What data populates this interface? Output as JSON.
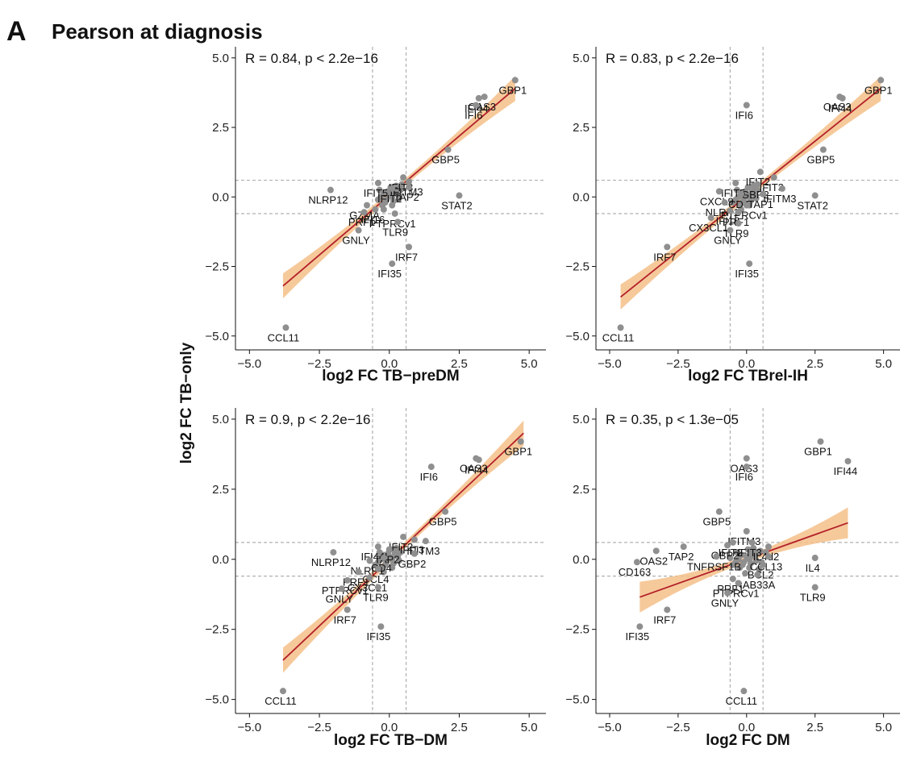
{
  "figure": {
    "panel_letter": "A",
    "title": "Pearson at diagnosis",
    "shared_ylabel": "log2 FC TB−only"
  },
  "colors": {
    "point": "#8f8f8f",
    "fit_line": "#b3202a",
    "ci_band": "#f5c088",
    "reference_line": "#b0b0b0"
  },
  "chart_data": [
    {
      "type": "scatter",
      "annotation": "R = 0.84, p < 2.2e−16",
      "xlabel": "log2 FC TB−preDM",
      "xlim": [
        -5.5,
        5.6
      ],
      "ylim": [
        -5.5,
        5.4
      ],
      "xticks": [
        "−5.0",
        "−2.5",
        "0.0",
        "2.5",
        "5.0"
      ],
      "xtick_values": [
        -5,
        -2.5,
        0,
        2.5,
        5
      ],
      "yticks": [
        "−5.0",
        "−2.5",
        "0.0",
        "2.5",
        "5.0"
      ],
      "ytick_values": [
        -5,
        -2.5,
        0,
        2.5,
        5
      ],
      "reference_lines": {
        "x": [
          -0.6,
          0.6
        ],
        "y": [
          -0.6,
          0.6
        ]
      },
      "fit": {
        "x_range": [
          -3.8,
          4.5
        ],
        "y_range": [
          -3.2,
          3.9
        ],
        "ci_halfwidth_ends": 0.45,
        "ci_halfwidth_mid": 0.12
      },
      "labeled_points": [
        {
          "label": "GBP1",
          "x": 4.5,
          "y": 4.2
        },
        {
          "label": "OAS3",
          "x": 3.4,
          "y": 3.6
        },
        {
          "label": "IFI44",
          "x": 3.2,
          "y": 3.55
        },
        {
          "label": "IFI6",
          "x": 3.1,
          "y": 3.3
        },
        {
          "label": "GBP5",
          "x": 2.1,
          "y": 1.7
        },
        {
          "label": "IFIT3",
          "x": 0.5,
          "y": 0.7
        },
        {
          "label": "IFITM3",
          "x": 0.7,
          "y": 0.55
        },
        {
          "label": "IFIT5",
          "x": -0.4,
          "y": 0.5
        },
        {
          "label": "IFIT2",
          "x": 0.1,
          "y": 0.3
        },
        {
          "label": "NLRP12",
          "x": -2.1,
          "y": 0.25
        },
        {
          "label": "TAP2",
          "x": 0.7,
          "y": 0.35
        },
        {
          "label": "STAT2",
          "x": 2.5,
          "y": 0.05
        },
        {
          "label": "GZMA",
          "x": -0.8,
          "y": -0.3
        },
        {
          "label": "IFI16",
          "x": -0.5,
          "y": -0.45
        },
        {
          "label": "PRF1",
          "x": -0.9,
          "y": -0.55
        },
        {
          "label": "PTPRCv1",
          "x": 0.2,
          "y": -0.6
        },
        {
          "label": "TLR9",
          "x": 0.3,
          "y": -0.9
        },
        {
          "label": "GNLY",
          "x": -1.1,
          "y": -1.2
        },
        {
          "label": "IRF7",
          "x": 0.7,
          "y": -1.8
        },
        {
          "label": "IFI35",
          "x": 0.1,
          "y": -2.4
        },
        {
          "label": "CCL11",
          "x": -3.7,
          "y": -4.7
        }
      ],
      "unlabeled_points": [
        {
          "x": 0.0,
          "y": 0.1
        },
        {
          "x": 0.1,
          "y": 0.0
        },
        {
          "x": -0.2,
          "y": 0.15
        },
        {
          "x": 0.2,
          "y": 0.2
        },
        {
          "x": -0.1,
          "y": -0.1
        },
        {
          "x": 0.3,
          "y": 0.1
        },
        {
          "x": -0.3,
          "y": 0.0
        },
        {
          "x": 0.15,
          "y": -0.15
        },
        {
          "x": -0.15,
          "y": -0.2
        },
        {
          "x": 0.4,
          "y": 0.25
        },
        {
          "x": -0.4,
          "y": -0.1
        },
        {
          "x": 0.25,
          "y": 0.4
        },
        {
          "x": 0.05,
          "y": 0.35
        },
        {
          "x": -0.25,
          "y": -0.3
        },
        {
          "x": 0.35,
          "y": -0.05
        },
        {
          "x": -0.05,
          "y": 0.2
        },
        {
          "x": 0.45,
          "y": 0.45
        },
        {
          "x": -0.35,
          "y": 0.25
        },
        {
          "x": 0.1,
          "y": -0.3
        },
        {
          "x": -0.2,
          "y": -0.45
        }
      ]
    },
    {
      "type": "scatter",
      "annotation": "R = 0.83, p < 2.2e−16",
      "xlabel": "log2 FC TBrel-IH",
      "xlim": [
        -5.5,
        5.6
      ],
      "ylim": [
        -5.5,
        5.4
      ],
      "xticks": [
        "−5.0",
        "−2.5",
        "0.0",
        "2.5",
        "5.0"
      ],
      "xtick_values": [
        -5,
        -2.5,
        0,
        2.5,
        5
      ],
      "yticks": [
        "−5.0",
        "−2.5",
        "0.0",
        "2.5",
        "5.0"
      ],
      "ytick_values": [
        -5,
        -2.5,
        0,
        2.5,
        5
      ],
      "reference_lines": {
        "x": [
          -0.6,
          0.6
        ],
        "y": [
          -0.6,
          0.6
        ]
      },
      "fit": {
        "x_range": [
          -4.6,
          4.9
        ],
        "y_range": [
          -3.6,
          3.9
        ],
        "ci_halfwidth_ends": 0.45,
        "ci_halfwidth_mid": 0.12
      },
      "labeled_points": [
        {
          "label": "GBP1",
          "x": 4.9,
          "y": 4.2
        },
        {
          "label": "OAS3",
          "x": 3.4,
          "y": 3.6
        },
        {
          "label": "IFI44",
          "x": 3.5,
          "y": 3.55
        },
        {
          "label": "IFI6",
          "x": 0.0,
          "y": 3.3
        },
        {
          "label": "GBP5",
          "x": 2.8,
          "y": 1.7
        },
        {
          "label": "IFIT2",
          "x": 0.5,
          "y": 0.9
        },
        {
          "label": "IFIT3",
          "x": 1.0,
          "y": 0.7
        },
        {
          "label": "GBP2",
          "x": 0.4,
          "y": 0.45
        },
        {
          "label": "IFITM3",
          "x": 1.3,
          "y": 0.3
        },
        {
          "label": "IFIT5",
          "x": -0.4,
          "y": 0.5
        },
        {
          "label": "CXCL9",
          "x": -1.0,
          "y": 0.2
        },
        {
          "label": "CD4",
          "x": -0.2,
          "y": 0.1
        },
        {
          "label": "TAP1",
          "x": 0.6,
          "y": 0.1
        },
        {
          "label": "NLRP1",
          "x": -0.8,
          "y": -0.2
        },
        {
          "label": "STAT2",
          "x": 2.5,
          "y": 0.05
        },
        {
          "label": "PTPRCv1",
          "x": 0.0,
          "y": -0.3
        },
        {
          "label": "IFI16",
          "x": -0.6,
          "y": -0.5
        },
        {
          "label": "PRF1",
          "x": -0.3,
          "y": -0.55
        },
        {
          "label": "CX3CL1",
          "x": -1.3,
          "y": -0.75
        },
        {
          "label": "TLR9",
          "x": -0.3,
          "y": -0.95
        },
        {
          "label": "GNLY",
          "x": -0.6,
          "y": -1.2
        },
        {
          "label": "IRF7",
          "x": -2.9,
          "y": -1.8
        },
        {
          "label": "IFI35",
          "x": 0.1,
          "y": -2.4
        },
        {
          "label": "CCL11",
          "x": -4.6,
          "y": -4.7
        }
      ],
      "unlabeled_points": [
        {
          "x": 0.0,
          "y": 0.1
        },
        {
          "x": 0.1,
          "y": 0.0
        },
        {
          "x": -0.2,
          "y": 0.15
        },
        {
          "x": 0.2,
          "y": 0.2
        },
        {
          "x": -0.1,
          "y": -0.1
        },
        {
          "x": 0.3,
          "y": 0.1
        },
        {
          "x": -0.3,
          "y": 0.0
        },
        {
          "x": 0.15,
          "y": -0.15
        },
        {
          "x": -0.15,
          "y": -0.2
        },
        {
          "x": 0.4,
          "y": 0.25
        },
        {
          "x": -0.4,
          "y": -0.1
        },
        {
          "x": 0.25,
          "y": 0.4
        },
        {
          "x": 0.05,
          "y": 0.35
        },
        {
          "x": -0.25,
          "y": -0.3
        },
        {
          "x": 0.35,
          "y": -0.05
        },
        {
          "x": -0.05,
          "y": 0.2
        },
        {
          "x": -0.5,
          "y": -0.2
        },
        {
          "x": -0.35,
          "y": 0.25
        },
        {
          "x": 0.1,
          "y": -0.3
        },
        {
          "x": -0.2,
          "y": -0.45
        }
      ]
    },
    {
      "type": "scatter",
      "annotation": "R = 0.9, p < 2.2e−16",
      "xlabel": "log2 FC TB−DM",
      "xlim": [
        -5.5,
        5.6
      ],
      "ylim": [
        -5.5,
        5.4
      ],
      "xticks": [
        "−5.0",
        "−2.5",
        "0.0",
        "2.5",
        "5.0"
      ],
      "xtick_values": [
        -5,
        -2.5,
        0,
        2.5,
        5
      ],
      "yticks": [
        "−5.0",
        "−2.5",
        "0.0",
        "2.5",
        "5.0"
      ],
      "ytick_values": [
        -5,
        -2.5,
        0,
        2.5,
        5
      ],
      "reference_lines": {
        "x": [
          -0.6,
          0.6
        ],
        "y": [
          -0.6,
          0.6
        ]
      },
      "fit": {
        "x_range": [
          -3.8,
          4.8
        ],
        "y_range": [
          -3.6,
          4.5
        ],
        "ci_halfwidth_ends": 0.45,
        "ci_halfwidth_mid": 0.12
      },
      "labeled_points": [
        {
          "label": "GBP1",
          "x": 4.7,
          "y": 4.2
        },
        {
          "label": "OAS3",
          "x": 3.1,
          "y": 3.6
        },
        {
          "label": "IFI44",
          "x": 3.2,
          "y": 3.55
        },
        {
          "label": "IFI6",
          "x": 1.5,
          "y": 3.3
        },
        {
          "label": "GBP5",
          "x": 2.0,
          "y": 1.7
        },
        {
          "label": "IFIT2",
          "x": 0.5,
          "y": 0.8
        },
        {
          "label": "IFIT3",
          "x": 0.9,
          "y": 0.7
        },
        {
          "label": "IFITM3",
          "x": 1.3,
          "y": 0.65
        },
        {
          "label": "IFI44L",
          "x": -0.4,
          "y": 0.45
        },
        {
          "label": "TAP2",
          "x": 0.0,
          "y": 0.35
        },
        {
          "label": "NLRP12",
          "x": -2.0,
          "y": 0.25
        },
        {
          "label": "GBP2",
          "x": 0.9,
          "y": 0.2
        },
        {
          "label": "CD4",
          "x": -0.2,
          "y": 0.05
        },
        {
          "label": "NLRP1",
          "x": -0.7,
          "y": -0.05
        },
        {
          "label": "CCL4",
          "x": -0.4,
          "y": -0.35
        },
        {
          "label": "PRF1",
          "x": -1.1,
          "y": -0.45
        },
        {
          "label": "PTPRCv1",
          "x": -1.5,
          "y": -0.75
        },
        {
          "label": "CX3CL1",
          "x": -0.7,
          "y": -0.65
        },
        {
          "label": "GNLY",
          "x": -1.7,
          "y": -1.05
        },
        {
          "label": "TLR9",
          "x": -0.4,
          "y": -1.0
        },
        {
          "label": "IRF7",
          "x": -1.5,
          "y": -1.8
        },
        {
          "label": "IFI35",
          "x": -0.3,
          "y": -2.4
        },
        {
          "label": "CCL11",
          "x": -3.8,
          "y": -4.7
        }
      ],
      "unlabeled_points": [
        {
          "x": 0.0,
          "y": 0.1
        },
        {
          "x": 0.1,
          "y": 0.0
        },
        {
          "x": -0.2,
          "y": 0.15
        },
        {
          "x": 0.2,
          "y": 0.2
        },
        {
          "x": -0.1,
          "y": -0.1
        },
        {
          "x": 0.3,
          "y": 0.1
        },
        {
          "x": -0.3,
          "y": 0.0
        },
        {
          "x": 0.15,
          "y": -0.15
        },
        {
          "x": -0.15,
          "y": -0.2
        },
        {
          "x": 0.4,
          "y": 0.25
        },
        {
          "x": -0.4,
          "y": -0.1
        },
        {
          "x": 0.25,
          "y": 0.4
        },
        {
          "x": 0.05,
          "y": 0.35
        },
        {
          "x": -0.25,
          "y": -0.3
        },
        {
          "x": 0.35,
          "y": -0.05
        },
        {
          "x": -0.05,
          "y": 0.2
        },
        {
          "x": -0.5,
          "y": -0.2
        },
        {
          "x": -0.35,
          "y": 0.25
        },
        {
          "x": 0.1,
          "y": -0.3
        },
        {
          "x": -0.2,
          "y": -0.45
        }
      ]
    },
    {
      "type": "scatter",
      "annotation": "R = 0.35, p < 1.3e−05",
      "xlabel": "log2 FC DM",
      "xlim": [
        -5.5,
        5.6
      ],
      "ylim": [
        -5.5,
        5.4
      ],
      "xticks": [
        "−5.0",
        "−2.5",
        "0.0",
        "2.5",
        "5.0"
      ],
      "xtick_values": [
        -5,
        -2.5,
        0,
        2.5,
        5
      ],
      "yticks": [
        "−5.0",
        "−2.5",
        "0.0",
        "2.5",
        "5.0"
      ],
      "ytick_values": [
        -5,
        -2.5,
        0,
        2.5,
        5
      ],
      "reference_lines": {
        "x": [
          -0.6,
          0.6
        ],
        "y": [
          -0.6,
          0.6
        ]
      },
      "fit": {
        "x_range": [
          -3.9,
          3.7
        ],
        "y_range": [
          -1.35,
          1.3
        ],
        "ci_halfwidth_ends": 0.55,
        "ci_halfwidth_mid": 0.12
      },
      "labeled_points": [
        {
          "label": "GBP1",
          "x": 2.7,
          "y": 4.2
        },
        {
          "label": "IFI44",
          "x": 3.7,
          "y": 3.5
        },
        {
          "label": "OAS3",
          "x": 0.0,
          "y": 3.6
        },
        {
          "label": "IFI6",
          "x": 0.0,
          "y": 3.3
        },
        {
          "label": "GBP5",
          "x": -1.0,
          "y": 1.7
        },
        {
          "label": "IFITM3",
          "x": 0.0,
          "y": 1.0
        },
        {
          "label": "IFIT2",
          "x": -0.5,
          "y": 0.6
        },
        {
          "label": "IFIT3",
          "x": 0.2,
          "y": 0.6
        },
        {
          "label": "IL4d2",
          "x": 0.8,
          "y": 0.45
        },
        {
          "label": "GBP2",
          "x": -0.7,
          "y": 0.5
        },
        {
          "label": "TAP2",
          "x": -2.3,
          "y": 0.45
        },
        {
          "label": "OAS2",
          "x": -3.3,
          "y": 0.3
        },
        {
          "label": "CD163",
          "x": -4.0,
          "y": -0.1
        },
        {
          "label": "TNFRSF1B",
          "x": -1.1,
          "y": 0.1
        },
        {
          "label": "CCL13",
          "x": 0.8,
          "y": 0.1
        },
        {
          "label": "IL4",
          "x": 2.5,
          "y": 0.05
        },
        {
          "label": "BCL2",
          "x": 0.6,
          "y": -0.2
        },
        {
          "label": "RAB33A",
          "x": 0.4,
          "y": -0.55
        },
        {
          "label": "PRF1",
          "x": -0.5,
          "y": -0.7
        },
        {
          "label": "PTPRCv1",
          "x": -0.3,
          "y": -0.85
        },
        {
          "label": "TLR9",
          "x": 2.5,
          "y": -1.0
        },
        {
          "label": "GNLY",
          "x": -0.7,
          "y": -1.2
        },
        {
          "label": "IRF7",
          "x": -2.9,
          "y": -1.8
        },
        {
          "label": "IFI35",
          "x": -3.9,
          "y": -2.4
        },
        {
          "label": "CCL11",
          "x": -0.1,
          "y": -4.7
        }
      ],
      "unlabeled_points": [
        {
          "x": 0.0,
          "y": 0.1
        },
        {
          "x": 0.1,
          "y": 0.0
        },
        {
          "x": -0.2,
          "y": 0.15
        },
        {
          "x": 0.2,
          "y": 0.2
        },
        {
          "x": -0.1,
          "y": -0.1
        },
        {
          "x": 0.3,
          "y": 0.1
        },
        {
          "x": -0.3,
          "y": 0.0
        },
        {
          "x": 0.15,
          "y": -0.15
        },
        {
          "x": -0.15,
          "y": -0.2
        },
        {
          "x": 0.4,
          "y": 0.25
        },
        {
          "x": -0.4,
          "y": -0.1
        },
        {
          "x": 0.25,
          "y": 0.4
        },
        {
          "x": 0.05,
          "y": 0.35
        },
        {
          "x": -0.25,
          "y": -0.3
        },
        {
          "x": 0.35,
          "y": -0.05
        },
        {
          "x": 0.5,
          "y": 0.3
        },
        {
          "x": -0.5,
          "y": -0.2
        },
        {
          "x": -0.35,
          "y": 0.25
        },
        {
          "x": 0.1,
          "y": -0.3
        },
        {
          "x": 0.55,
          "y": -0.1
        },
        {
          "x": 0.7,
          "y": 0.25
        },
        {
          "x": -0.6,
          "y": 0.05
        },
        {
          "x": 0.45,
          "y": -0.35
        },
        {
          "x": -0.05,
          "y": -0.5
        }
      ]
    }
  ]
}
